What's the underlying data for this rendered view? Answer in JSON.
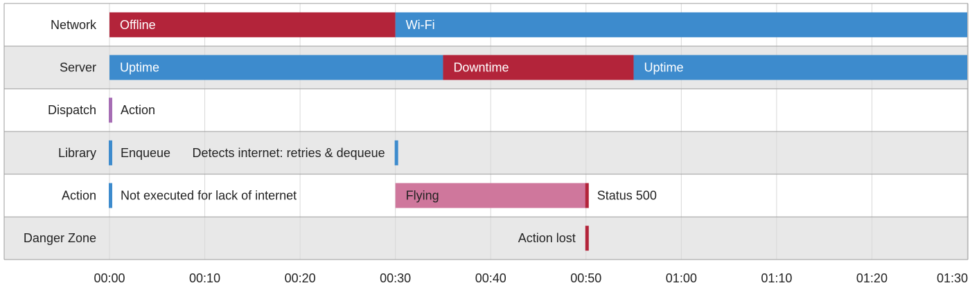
{
  "chart_data": {
    "type": "timeline",
    "x_unit": "seconds",
    "x_range": [
      0,
      90
    ],
    "tick_step": 10,
    "tick_labels": [
      "00:00",
      "00:10",
      "00:20",
      "00:30",
      "00:40",
      "00:50",
      "01:00",
      "01:10",
      "01:20",
      "01:30"
    ],
    "grid": true,
    "colors": {
      "red": "#b3243a",
      "blue": "#3d8bcd",
      "purple": "#a66db4",
      "pink": "#cf779c",
      "row_even": "#ffffff",
      "row_odd": "#e8e8e8",
      "grid": "#d8d8d8",
      "border": "#9e9e9e"
    },
    "rows": [
      {
        "label": "Network",
        "bars": [
          {
            "label": "Offline",
            "start": 0,
            "end": 30,
            "color": "red"
          },
          {
            "label": "Wi-Fi",
            "start": 30,
            "end": 90,
            "color": "blue"
          }
        ]
      },
      {
        "label": "Server",
        "bars": [
          {
            "label": "Uptime",
            "start": 0,
            "end": 35,
            "color": "blue"
          },
          {
            "label": "Downtime",
            "start": 35,
            "end": 55,
            "color": "red"
          },
          {
            "label": "Uptime",
            "start": 55,
            "end": 90,
            "color": "blue"
          }
        ]
      },
      {
        "label": "Dispatch",
        "bars": [
          {
            "label": "Action",
            "start": 0,
            "end": 0.4,
            "color": "purple"
          }
        ]
      },
      {
        "label": "Library",
        "bars": [
          {
            "label": "Enqueue",
            "start": 0,
            "end": 0.4,
            "color": "blue"
          },
          {
            "label": "Detects internet: retries & dequeue",
            "start": 30,
            "end": 30.4,
            "color": "blue",
            "label_side": "left"
          }
        ]
      },
      {
        "label": "Action",
        "bars": [
          {
            "label": "Not executed for lack of internet",
            "start": 0,
            "end": 0.4,
            "color": "blue"
          },
          {
            "label": "Flying",
            "start": 30,
            "end": 50,
            "color": "pink"
          },
          {
            "label": "Status 500",
            "start": 50,
            "end": 50.4,
            "color": "red"
          }
        ]
      },
      {
        "label": "Danger Zone",
        "bars": [
          {
            "label": "Action lost",
            "start": 50,
            "end": 50.4,
            "color": "red",
            "label_side": "left"
          }
        ]
      }
    ]
  }
}
